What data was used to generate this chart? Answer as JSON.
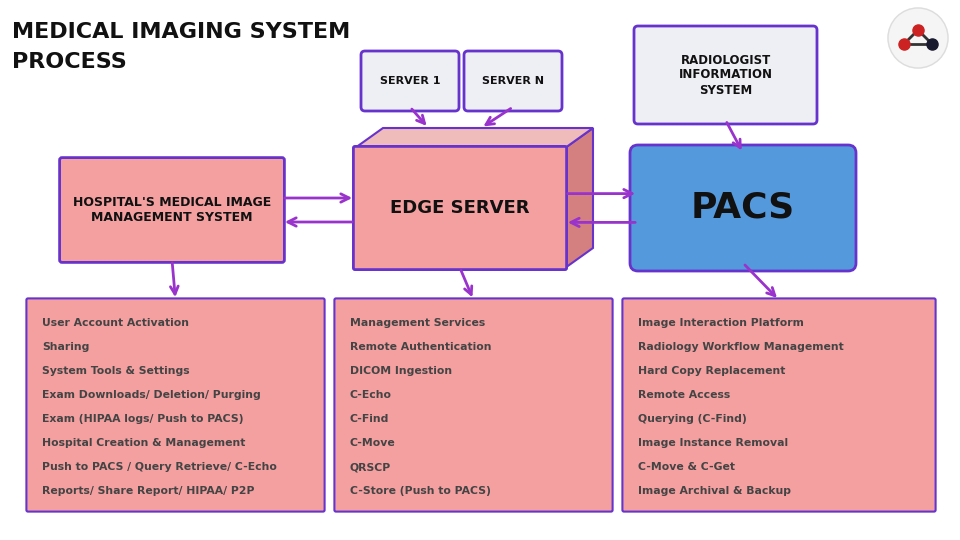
{
  "title_line1": "MEDICAL IMAGING SYSTEM",
  "title_line2": "PROCESS",
  "bg_color": "#ffffff",
  "arrow_color": "#9933CC",
  "box_pink_fill": "#F4A0A0",
  "box_pink_edge": "#6633CC",
  "box_blue_fill": "#5599DD",
  "box_gray_fill": "#EEEEF5",
  "box_gray_edge": "#6633CC",
  "box_dark_pink": "#D48080",
  "box_top_pink": "#EFBBBB",
  "text_dark": "#111111",
  "text_list": "#444444",
  "hospital_list": [
    "User Account Activation",
    "Sharing",
    "System Tools & Settings",
    "Exam Downloads/ Deletion/ Purging",
    "Exam (HIPAA logs/ Push to PACS)",
    "Hospital Creation & Management",
    "Push to PACS / Query Retrieve/ C-Echo",
    "Reports/ Share Report/ HIPAA/ P2P"
  ],
  "edge_list": [
    "Management Services",
    "Remote Authentication",
    "DICOM Ingestion",
    "C-Echo",
    "C-Find",
    "C-Move",
    "QRSCP",
    "C-Store (Push to PACS)"
  ],
  "pacs_list": [
    "Image Interaction Platform",
    "Radiology Workflow Management",
    "Hard Copy Replacement",
    "Remote Access",
    "Querying (C-Find)",
    "Image Instance Removal",
    "C-Move & C-Get",
    "Image Archival & Backup"
  ]
}
